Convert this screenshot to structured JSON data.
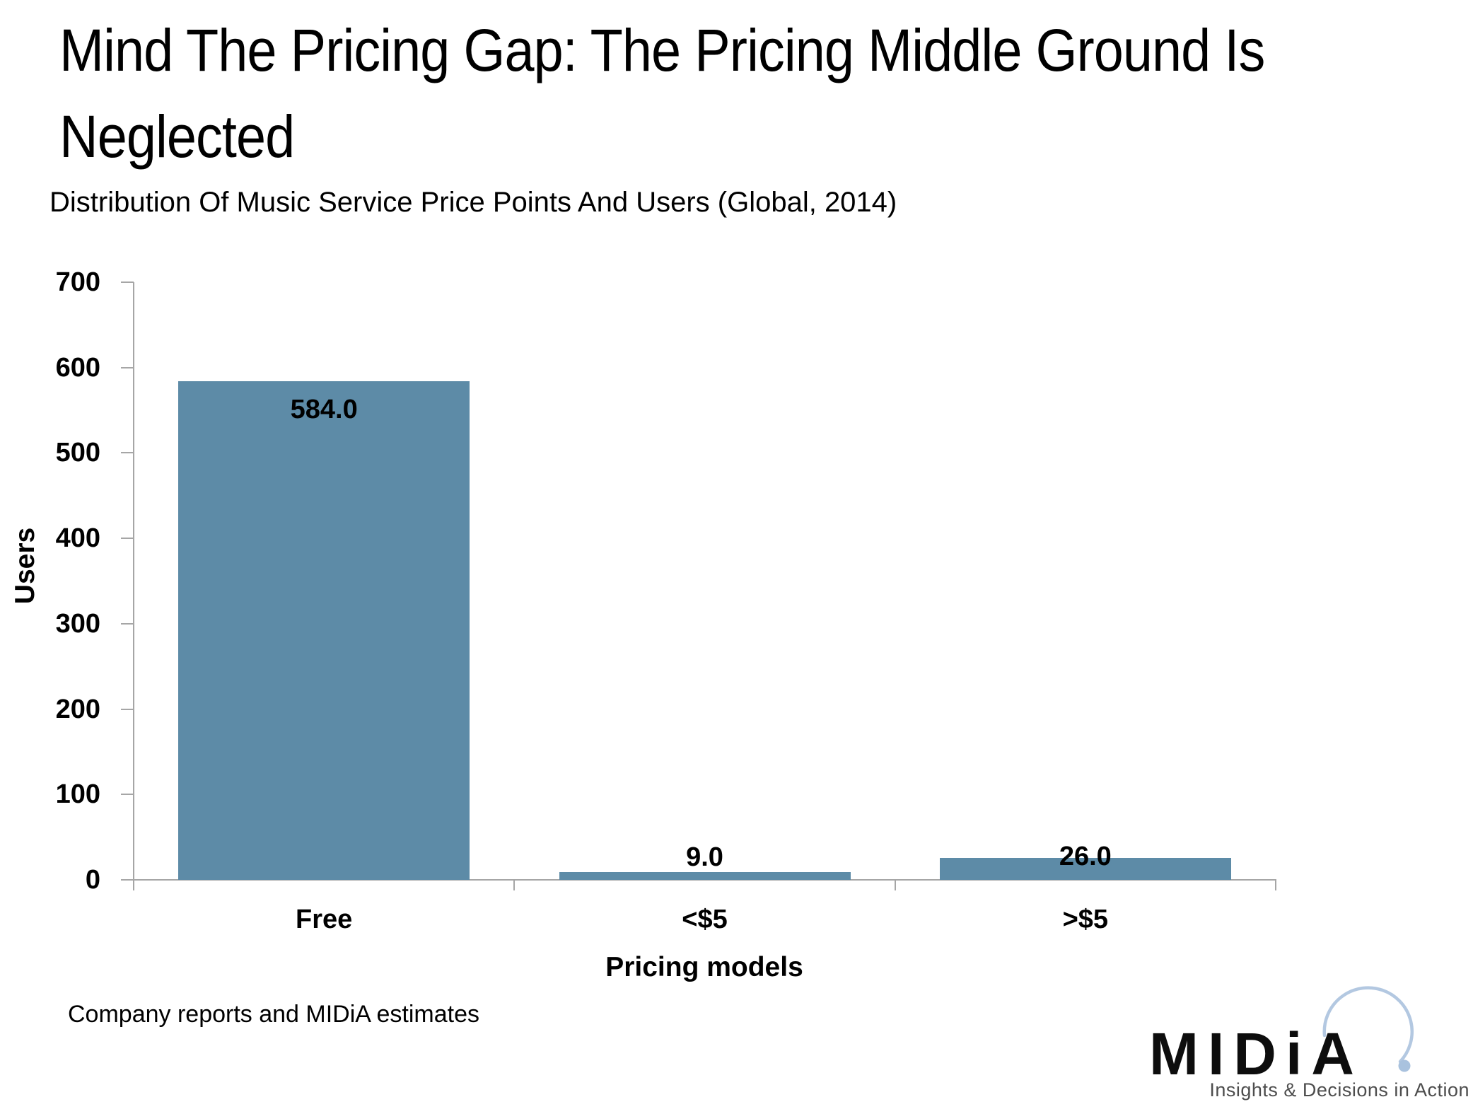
{
  "page": {
    "title": "Mind The Pricing Gap: The Pricing Middle Ground Is\nNeglected",
    "source_note": "Company reports and MIDiA estimates"
  },
  "chart_data": {
    "type": "bar",
    "title": "Distribution Of Music Service Price Points And Users (Global, 2014)",
    "categories": [
      "Free",
      "<$5",
      ">$5"
    ],
    "values": [
      584.0,
      9.0,
      26.0
    ],
    "value_labels": [
      "584.0",
      "9.0",
      "26.0"
    ],
    "xlabel": "Pricing models",
    "ylabel": "Users",
    "ylim": [
      0,
      700
    ],
    "yticks": [
      0,
      100,
      200,
      300,
      400,
      500,
      600,
      700
    ],
    "grid": false,
    "legend": "none",
    "bar_color": "#5d8ba7",
    "axis_color": "#a6a6a6",
    "label_color": "#000000"
  },
  "logo": {
    "brand": "MIDiA",
    "tagline": "Insights & Decisions in Action",
    "arc_color": "#b3c8e1",
    "dot_color": "#a9c2de"
  }
}
